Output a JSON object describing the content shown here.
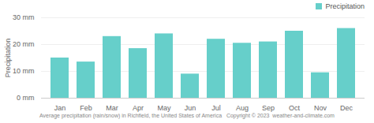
{
  "chart_data": {
    "type": "bar",
    "ylabel": "Precipitation",
    "caption": "Average precipitation (rain/snow) in Richfield, the United States of America   Copyright © 2023  weather-and-climate.com",
    "categories": [
      "Jan",
      "Feb",
      "Mar",
      "Apr",
      "May",
      "Jun",
      "Jul",
      "Aug",
      "Sep",
      "Oct",
      "Nov",
      "Dec"
    ],
    "series": [
      {
        "name": "Precipitation",
        "color": "#66CFCA",
        "values": [
          15.0,
          13.5,
          23.0,
          18.5,
          24.0,
          9.0,
          22.0,
          20.5,
          21.0,
          25.0,
          9.5,
          26.0
        ]
      }
    ],
    "ylim": [
      0,
      30
    ],
    "yticks": [
      {
        "value": 0,
        "label": "0 mm"
      },
      {
        "value": 10,
        "label": "10 mm"
      },
      {
        "value": 20,
        "label": "20 mm"
      },
      {
        "value": 30,
        "label": "30 mm"
      }
    ],
    "grid": true,
    "legend": "upper right"
  }
}
